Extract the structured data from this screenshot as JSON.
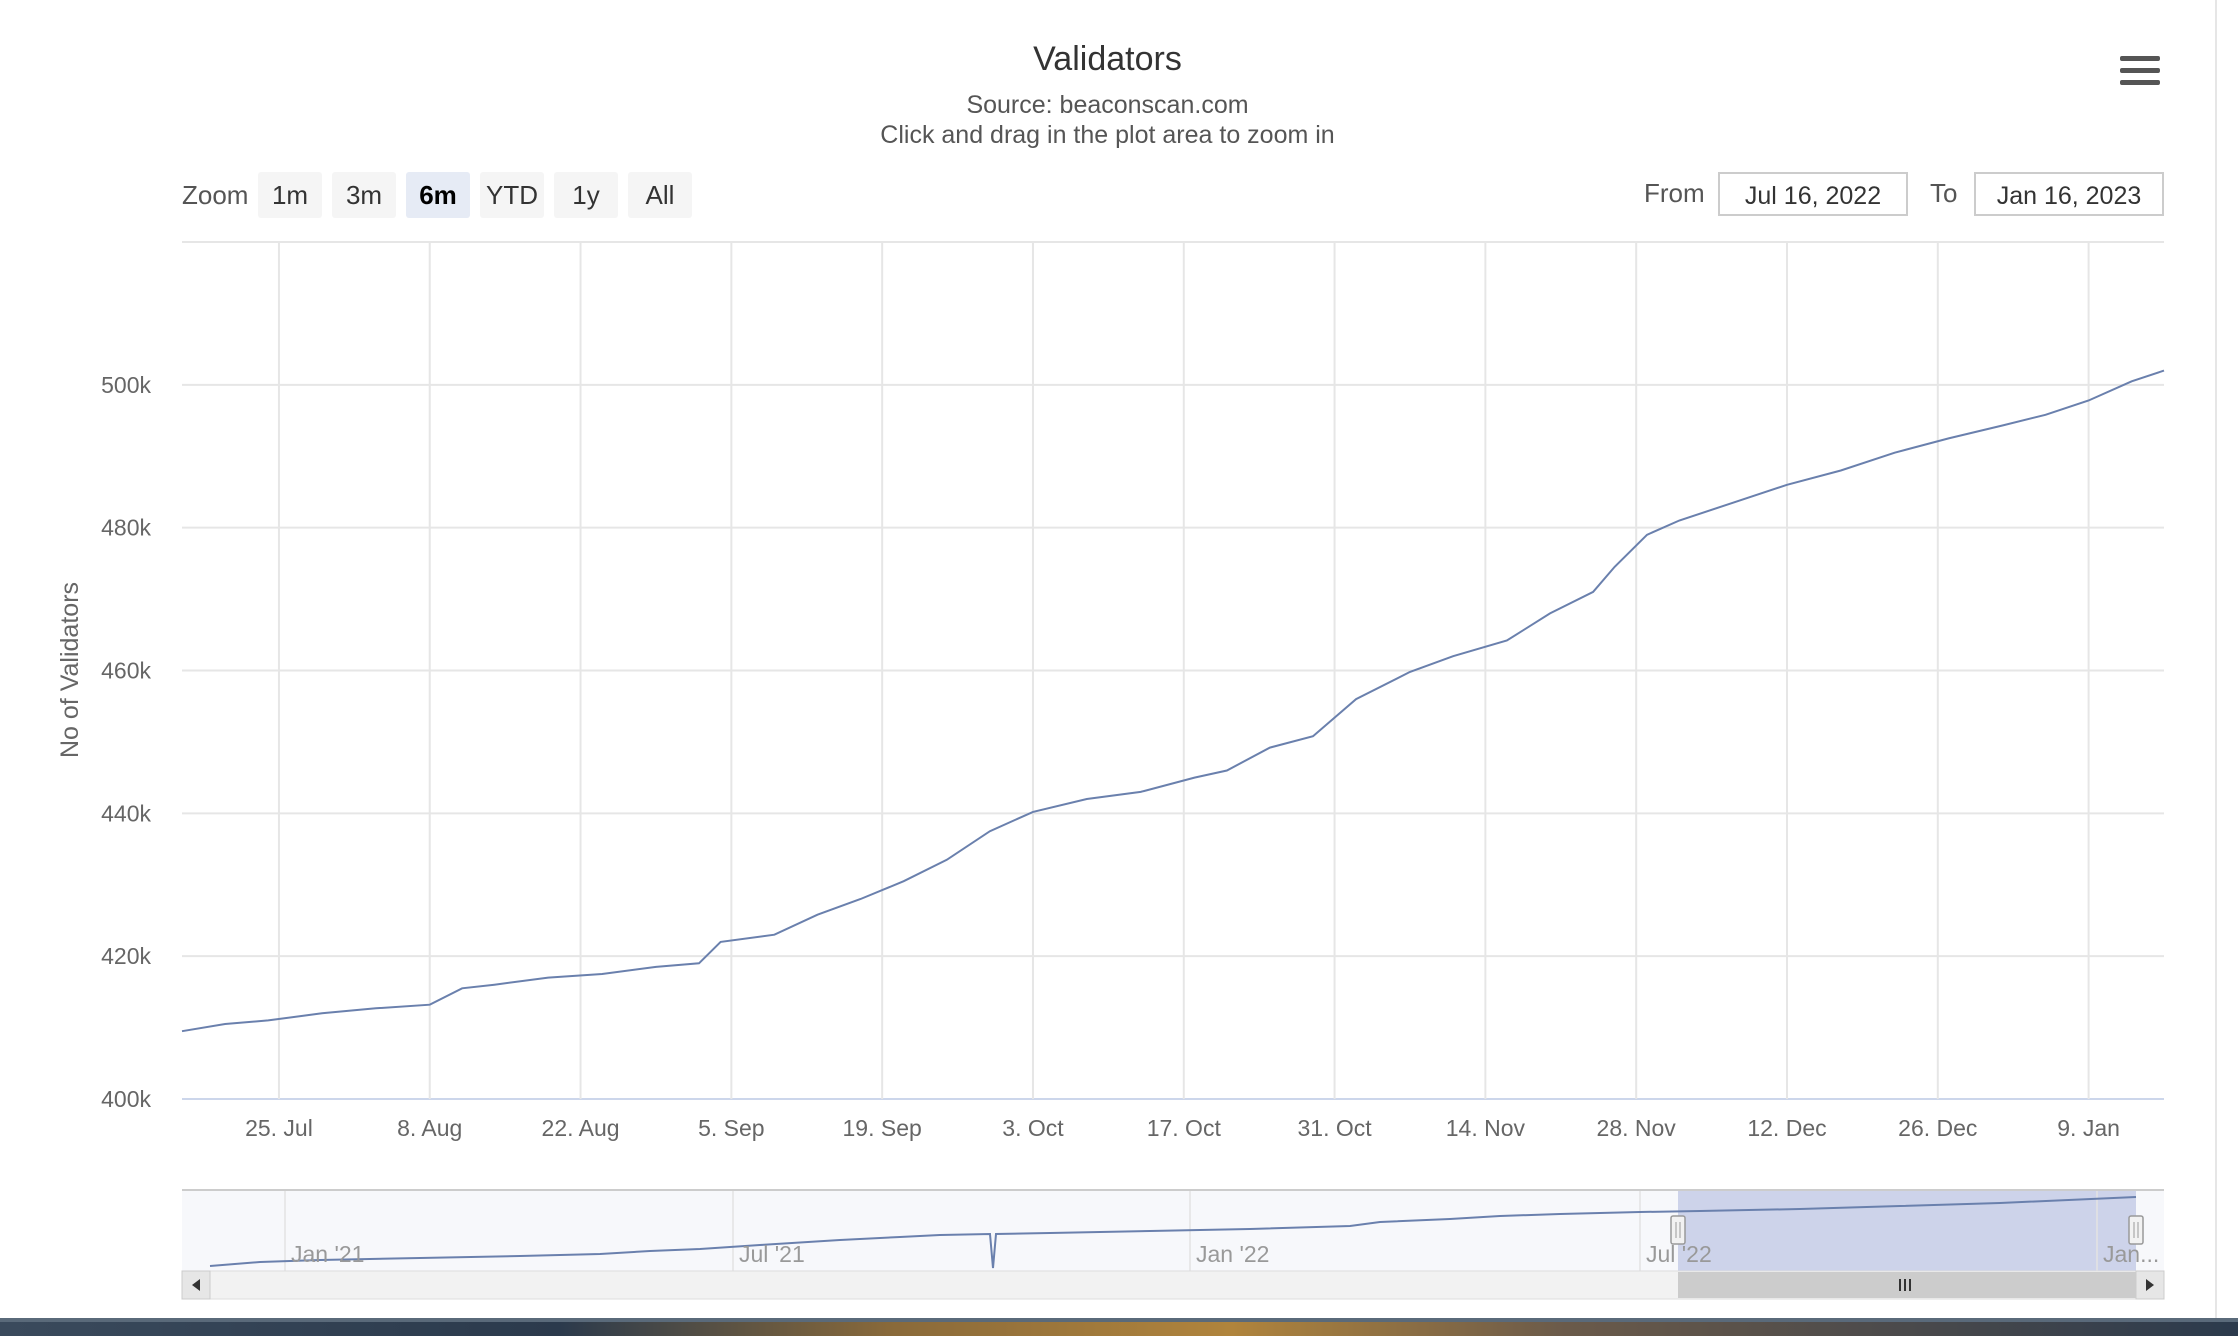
{
  "title": "Validators",
  "subtitle_source": "Source: beaconscan.com",
  "subtitle_hint": "Click and drag in the plot area to zoom in",
  "menu_icon": "hamburger-menu-icon",
  "range_selector": {
    "zoom_label": "Zoom",
    "buttons": [
      "1m",
      "3m",
      "6m",
      "YTD",
      "1y",
      "All"
    ],
    "selected": "6m",
    "from_label": "From",
    "from_value": "Jul 16, 2022",
    "to_label": "To",
    "to_value": "Jan 16, 2023"
  },
  "colors": {
    "series": "#6a80ad",
    "navigator_fill": "#c5cde6",
    "grid": "#e6e6e6"
  },
  "chart_data": {
    "type": "line",
    "title": "Validators",
    "subtitle": "Source: beaconscan.com",
    "ylabel": "No of Validators",
    "xlabel": "",
    "x_range": [
      "2022-07-16",
      "2023-01-16"
    ],
    "ylim": [
      400000,
      520000
    ],
    "y_ticks": [
      400000,
      420000,
      440000,
      460000,
      480000,
      500000
    ],
    "y_tick_labels": [
      "400k",
      "420k",
      "440k",
      "460k",
      "480k",
      "500k"
    ],
    "x_ticks": [
      "2022-07-25",
      "2022-08-08",
      "2022-08-22",
      "2022-09-05",
      "2022-09-19",
      "2022-10-03",
      "2022-10-17",
      "2022-10-31",
      "2022-11-14",
      "2022-11-28",
      "2022-12-12",
      "2022-12-26",
      "2023-01-09"
    ],
    "x_tick_labels": [
      "25. Jul",
      "8. Aug",
      "22. Aug",
      "5. Sep",
      "19. Sep",
      "3. Oct",
      "17. Oct",
      "31. Oct",
      "14. Nov",
      "28. Nov",
      "12. Dec",
      "26. Dec",
      "9. Jan"
    ],
    "grid": true,
    "legend": "none",
    "series": [
      {
        "x": [
          "2022-07-16",
          "2022-07-20",
          "2022-07-24",
          "2022-07-29",
          "2022-08-03",
          "2022-08-08",
          "2022-08-11",
          "2022-08-14",
          "2022-08-19",
          "2022-08-24",
          "2022-08-29",
          "2022-09-02",
          "2022-09-04",
          "2022-09-09",
          "2022-09-13",
          "2022-09-17",
          "2022-09-21",
          "2022-09-25",
          "2022-09-29",
          "2022-10-03",
          "2022-10-08",
          "2022-10-13",
          "2022-10-18",
          "2022-10-21",
          "2022-10-25",
          "2022-10-29",
          "2022-11-02",
          "2022-11-07",
          "2022-11-11",
          "2022-11-16",
          "2022-11-20",
          "2022-11-24",
          "2022-11-26",
          "2022-11-29",
          "2022-12-02",
          "2022-12-07",
          "2022-12-12",
          "2022-12-17",
          "2022-12-22",
          "2022-12-27",
          "2023-01-01",
          "2023-01-05",
          "2023-01-09",
          "2023-01-13",
          "2023-01-16"
        ],
        "y": [
          409500,
          410500,
          411000,
          412000,
          412700,
          413200,
          415500,
          416000,
          417000,
          417500,
          418500,
          419000,
          422000,
          423000,
          425800,
          428000,
          430500,
          433500,
          437500,
          440200,
          442000,
          443000,
          445000,
          446000,
          449200,
          450800,
          456000,
          459800,
          462000,
          464200,
          468000,
          471000,
          474500,
          479000,
          481000,
          483500,
          486000,
          488000,
          490500,
          492500,
          494300,
          495800,
          497800,
          500500,
          502000
        ]
      }
    ]
  },
  "navigator": {
    "x_labels": [
      "Jan '21",
      "Jul '21",
      "Jan '22",
      "Jul '22",
      "Jan..."
    ]
  }
}
